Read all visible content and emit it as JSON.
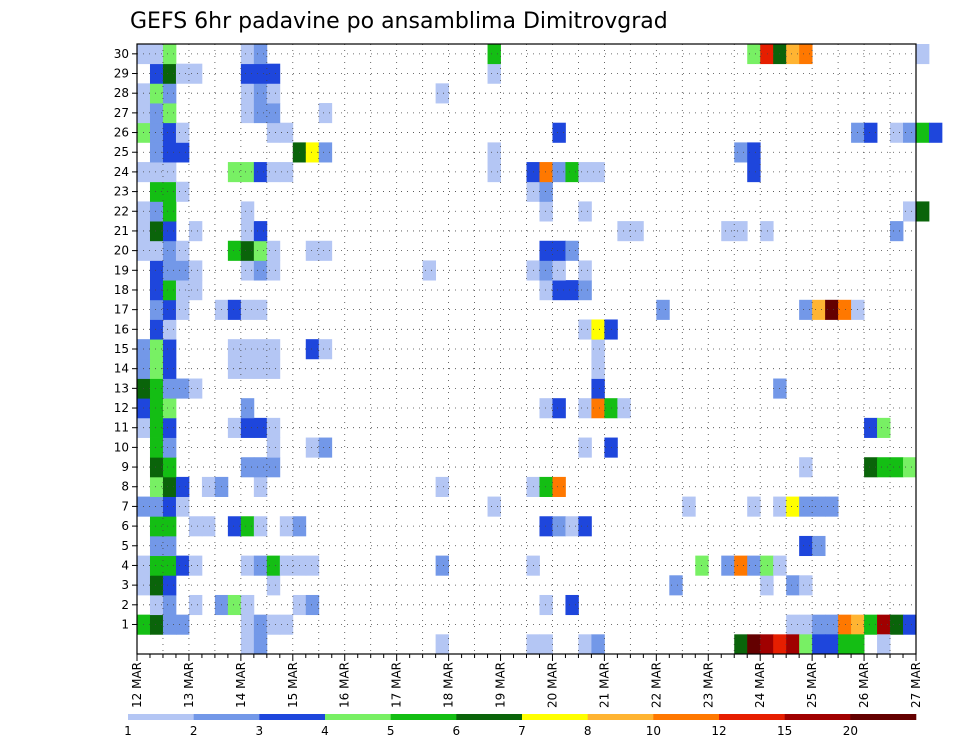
{
  "chart_data": {
    "type": "heatmap",
    "title": "GEFS 6hr padavine po ansamblima Dimitrovgrad",
    "y_members": [
      1,
      2,
      3,
      4,
      5,
      6,
      7,
      8,
      9,
      10,
      11,
      12,
      13,
      14,
      15,
      16,
      17,
      18,
      19,
      20,
      21,
      22,
      23,
      24,
      25,
      26,
      27,
      28,
      29,
      30
    ],
    "x_tick_labels": [
      "12 MAR",
      "13 MAR",
      "14 MAR",
      "15 MAR",
      "16 MAR",
      "17 MAR",
      "18 MAR",
      "19 MAR",
      "20 MAR",
      "21 MAR",
      "22 MAR",
      "23 MAR",
      "24 MAR",
      "25 MAR",
      "26 MAR",
      "27 MAR"
    ],
    "x_start_day": 12,
    "step_hours": 6,
    "grid": true,
    "colorbar": {
      "levels": [
        1,
        2,
        3,
        4,
        5,
        6,
        7,
        8,
        10,
        12,
        15,
        20
      ],
      "colors": [
        "#b4c6f4",
        "#7398e8",
        "#1e46dc",
        "#78f064",
        "#14be14",
        "#0a640a",
        "#ffff00",
        "#ffb432",
        "#ff7800",
        "#e61e00",
        "#a00000",
        "#640000"
      ]
    },
    "cells": [
      [
        1,
        0.0,
        5
      ],
      [
        1,
        0.25,
        6
      ],
      [
        1,
        0.5,
        2
      ],
      [
        1,
        0.75,
        2
      ],
      [
        1,
        2.0,
        1
      ],
      [
        1,
        2.25,
        2
      ],
      [
        1,
        2.5,
        1
      ],
      [
        1,
        2.75,
        1
      ],
      [
        1,
        12.5,
        1
      ],
      [
        1,
        12.75,
        1
      ],
      [
        1,
        13.0,
        2
      ],
      [
        1,
        13.25,
        2
      ],
      [
        1,
        13.5,
        9
      ],
      [
        1,
        13.75,
        8
      ],
      [
        1,
        14.0,
        5
      ],
      [
        1,
        14.25,
        11
      ],
      [
        1,
        14.5,
        6
      ],
      [
        1,
        14.75,
        3
      ],
      [
        2,
        0.25,
        1
      ],
      [
        2,
        0.5,
        2
      ],
      [
        2,
        1.0,
        1
      ],
      [
        2,
        1.5,
        2
      ],
      [
        2,
        1.75,
        4
      ],
      [
        2,
        2.0,
        1
      ],
      [
        2,
        3.0,
        1
      ],
      [
        2,
        3.25,
        2
      ],
      [
        2,
        7.75,
        1
      ],
      [
        2,
        8.25,
        3
      ],
      [
        3,
        0.0,
        1
      ],
      [
        3,
        0.25,
        6
      ],
      [
        3,
        0.5,
        3
      ],
      [
        3,
        2.5,
        1
      ],
      [
        3,
        10.25,
        2
      ],
      [
        3,
        12.0,
        1
      ],
      [
        3,
        12.5,
        2
      ],
      [
        3,
        12.75,
        1
      ],
      [
        4,
        0.0,
        1
      ],
      [
        4,
        0.25,
        5
      ],
      [
        4,
        0.5,
        5
      ],
      [
        4,
        0.75,
        3
      ],
      [
        4,
        1.0,
        1
      ],
      [
        4,
        2.0,
        1
      ],
      [
        4,
        2.25,
        2
      ],
      [
        4,
        2.5,
        5
      ],
      [
        4,
        2.75,
        1
      ],
      [
        4,
        3.0,
        1
      ],
      [
        4,
        3.25,
        1
      ],
      [
        4,
        5.75,
        2
      ],
      [
        4,
        7.5,
        1
      ],
      [
        4,
        10.75,
        4
      ],
      [
        4,
        11.25,
        2
      ],
      [
        4,
        11.5,
        9
      ],
      [
        4,
        11.75,
        2
      ],
      [
        4,
        12.0,
        4
      ],
      [
        4,
        12.25,
        1
      ],
      [
        5,
        0.25,
        2
      ],
      [
        5,
        0.5,
        2
      ],
      [
        5,
        12.75,
        3
      ],
      [
        5,
        13.0,
        2
      ],
      [
        6,
        0.25,
        5
      ],
      [
        6,
        0.5,
        5
      ],
      [
        6,
        1.0,
        1
      ],
      [
        6,
        1.25,
        1
      ],
      [
        6,
        1.75,
        3
      ],
      [
        6,
        2.0,
        5
      ],
      [
        6,
        2.25,
        1
      ],
      [
        6,
        2.75,
        1
      ],
      [
        6,
        3.0,
        2
      ],
      [
        6,
        7.75,
        3
      ],
      [
        6,
        8.0,
        2
      ],
      [
        6,
        8.25,
        1
      ],
      [
        6,
        8.5,
        3
      ],
      [
        7,
        0.0,
        2
      ],
      [
        7,
        0.25,
        2
      ],
      [
        7,
        0.5,
        3
      ],
      [
        7,
        0.75,
        1
      ],
      [
        7,
        6.75,
        1
      ],
      [
        7,
        10.5,
        1
      ],
      [
        7,
        11.75,
        1
      ],
      [
        7,
        12.25,
        1
      ],
      [
        7,
        12.5,
        7
      ],
      [
        7,
        12.75,
        2
      ],
      [
        7,
        13.0,
        2
      ],
      [
        7,
        13.25,
        2
      ],
      [
        8,
        0.25,
        4
      ],
      [
        8,
        0.5,
        6
      ],
      [
        8,
        0.75,
        3
      ],
      [
        8,
        1.25,
        1
      ],
      [
        8,
        1.5,
        2
      ],
      [
        8,
        2.25,
        1
      ],
      [
        8,
        5.75,
        1
      ],
      [
        8,
        7.5,
        1
      ],
      [
        8,
        7.75,
        5
      ],
      [
        8,
        8.0,
        9
      ],
      [
        9,
        0.25,
        6
      ],
      [
        9,
        0.5,
        5
      ],
      [
        9,
        2.0,
        2
      ],
      [
        9,
        2.25,
        2
      ],
      [
        9,
        2.5,
        2
      ],
      [
        9,
        12.75,
        1
      ],
      [
        9,
        14.0,
        6
      ],
      [
        9,
        14.25,
        5
      ],
      [
        9,
        14.5,
        5
      ],
      [
        9,
        14.75,
        4
      ],
      [
        10,
        0.25,
        5
      ],
      [
        10,
        0.5,
        2
      ],
      [
        10,
        2.5,
        1
      ],
      [
        10,
        3.25,
        1
      ],
      [
        10,
        3.5,
        2
      ],
      [
        10,
        8.5,
        1
      ],
      [
        10,
        9.0,
        3
      ],
      [
        11,
        0.0,
        1
      ],
      [
        11,
        0.25,
        5
      ],
      [
        11,
        0.5,
        3
      ],
      [
        11,
        1.75,
        1
      ],
      [
        11,
        2.0,
        3
      ],
      [
        11,
        2.25,
        3
      ],
      [
        11,
        2.5,
        1
      ],
      [
        11,
        14.0,
        3
      ],
      [
        11,
        14.25,
        4
      ],
      [
        12,
        0.0,
        3
      ],
      [
        12,
        0.25,
        5
      ],
      [
        12,
        0.5,
        4
      ],
      [
        12,
        2.0,
        2
      ],
      [
        12,
        7.75,
        1
      ],
      [
        12,
        8.0,
        3
      ],
      [
        12,
        8.5,
        1
      ],
      [
        12,
        8.75,
        9
      ],
      [
        12,
        9.0,
        5
      ],
      [
        12,
        9.25,
        1
      ],
      [
        13,
        0.0,
        6
      ],
      [
        13,
        0.25,
        5
      ],
      [
        13,
        0.5,
        2
      ],
      [
        13,
        0.75,
        2
      ],
      [
        13,
        1.0,
        1
      ],
      [
        13,
        8.75,
        3
      ],
      [
        13,
        12.25,
        2
      ],
      [
        14,
        0.0,
        2
      ],
      [
        14,
        0.25,
        4
      ],
      [
        14,
        0.5,
        3
      ],
      [
        14,
        1.75,
        1
      ],
      [
        14,
        2.0,
        1
      ],
      [
        14,
        2.25,
        1
      ],
      [
        14,
        2.5,
        1
      ],
      [
        14,
        8.75,
        1
      ],
      [
        15,
        0.0,
        2
      ],
      [
        15,
        0.25,
        4
      ],
      [
        15,
        0.5,
        3
      ],
      [
        15,
        1.75,
        1
      ],
      [
        15,
        2.0,
        1
      ],
      [
        15,
        2.25,
        1
      ],
      [
        15,
        2.5,
        1
      ],
      [
        15,
        3.25,
        3
      ],
      [
        15,
        3.5,
        1
      ],
      [
        15,
        8.75,
        1
      ],
      [
        16,
        0.25,
        3
      ],
      [
        16,
        0.5,
        1
      ],
      [
        16,
        8.5,
        1
      ],
      [
        16,
        8.75,
        7
      ],
      [
        16,
        9.0,
        3
      ],
      [
        17,
        0.25,
        2
      ],
      [
        17,
        0.5,
        3
      ],
      [
        17,
        0.75,
        1
      ],
      [
        17,
        1.5,
        1
      ],
      [
        17,
        1.75,
        3
      ],
      [
        17,
        2.0,
        1
      ],
      [
        17,
        2.25,
        1
      ],
      [
        17,
        10.0,
        2
      ],
      [
        17,
        12.75,
        2
      ],
      [
        17,
        13.0,
        8
      ],
      [
        17,
        13.25,
        12
      ],
      [
        17,
        13.5,
        9
      ],
      [
        17,
        13.75,
        1
      ],
      [
        18,
        0.25,
        3
      ],
      [
        18,
        0.5,
        5
      ],
      [
        18,
        0.75,
        1
      ],
      [
        18,
        1.0,
        1
      ],
      [
        18,
        7.75,
        1
      ],
      [
        18,
        8.0,
        3
      ],
      [
        18,
        8.25,
        3
      ],
      [
        18,
        8.5,
        2
      ],
      [
        19,
        0.25,
        3
      ],
      [
        19,
        0.5,
        2
      ],
      [
        19,
        0.75,
        2
      ],
      [
        19,
        1.0,
        1
      ],
      [
        19,
        2.0,
        1
      ],
      [
        19,
        2.25,
        2
      ],
      [
        19,
        2.5,
        1
      ],
      [
        19,
        5.5,
        1
      ],
      [
        19,
        7.5,
        1
      ],
      [
        19,
        7.75,
        2
      ],
      [
        19,
        8.0,
        1
      ],
      [
        19,
        8.5,
        1
      ],
      [
        20,
        0.0,
        1
      ],
      [
        20,
        0.25,
        1
      ],
      [
        20,
        0.5,
        2
      ],
      [
        20,
        0.75,
        1
      ],
      [
        20,
        1.75,
        5
      ],
      [
        20,
        2.0,
        6
      ],
      [
        20,
        2.25,
        4
      ],
      [
        20,
        2.5,
        1
      ],
      [
        20,
        3.25,
        1
      ],
      [
        20,
        3.5,
        1
      ],
      [
        20,
        7.75,
        3
      ],
      [
        20,
        8.0,
        3
      ],
      [
        20,
        8.25,
        2
      ],
      [
        21,
        0.0,
        1
      ],
      [
        21,
        0.25,
        6
      ],
      [
        21,
        0.5,
        3
      ],
      [
        21,
        1.0,
        1
      ],
      [
        21,
        2.0,
        1
      ],
      [
        21,
        2.25,
        3
      ],
      [
        21,
        9.25,
        1
      ],
      [
        21,
        9.5,
        1
      ],
      [
        21,
        11.25,
        1
      ],
      [
        21,
        11.5,
        1
      ],
      [
        21,
        12.0,
        1
      ],
      [
        21,
        14.5,
        2
      ],
      [
        22,
        0.0,
        1
      ],
      [
        22,
        0.25,
        2
      ],
      [
        22,
        0.5,
        5
      ],
      [
        22,
        2.0,
        1
      ],
      [
        22,
        7.75,
        1
      ],
      [
        22,
        8.5,
        1
      ],
      [
        22,
        14.75,
        1
      ],
      [
        22,
        15.0,
        6
      ],
      [
        23,
        0.25,
        5
      ],
      [
        23,
        0.5,
        5
      ],
      [
        23,
        0.75,
        1
      ],
      [
        23,
        7.5,
        1
      ],
      [
        23,
        7.75,
        2
      ],
      [
        24,
        0.0,
        1
      ],
      [
        24,
        0.25,
        1
      ],
      [
        24,
        0.5,
        1
      ],
      [
        24,
        1.75,
        4
      ],
      [
        24,
        2.0,
        4
      ],
      [
        24,
        2.25,
        3
      ],
      [
        24,
        2.5,
        1
      ],
      [
        24,
        2.75,
        1
      ],
      [
        24,
        6.75,
        1
      ],
      [
        24,
        7.5,
        3
      ],
      [
        24,
        7.75,
        9
      ],
      [
        24,
        8.0,
        2
      ],
      [
        24,
        8.25,
        5
      ],
      [
        24,
        8.5,
        1
      ],
      [
        24,
        8.75,
        1
      ],
      [
        24,
        11.75,
        3
      ],
      [
        25,
        0.25,
        2
      ],
      [
        25,
        0.5,
        3
      ],
      [
        25,
        0.75,
        3
      ],
      [
        25,
        3.0,
        6
      ],
      [
        25,
        3.25,
        7
      ],
      [
        25,
        3.5,
        2
      ],
      [
        25,
        6.75,
        1
      ],
      [
        25,
        11.5,
        2
      ],
      [
        25,
        11.75,
        3
      ],
      [
        26,
        0.0,
        4
      ],
      [
        26,
        0.25,
        2
      ],
      [
        26,
        0.5,
        3
      ],
      [
        26,
        0.75,
        1
      ],
      [
        26,
        2.5,
        1
      ],
      [
        26,
        2.75,
        1
      ],
      [
        26,
        8.0,
        3
      ],
      [
        26,
        13.75,
        2
      ],
      [
        26,
        14.0,
        3
      ],
      [
        26,
        14.5,
        1
      ],
      [
        26,
        14.75,
        2
      ],
      [
        26,
        15.0,
        5
      ],
      [
        26,
        15.25,
        3
      ],
      [
        27,
        0.0,
        1
      ],
      [
        27,
        0.25,
        2
      ],
      [
        27,
        0.5,
        4
      ],
      [
        27,
        2.0,
        1
      ],
      [
        27,
        2.25,
        2
      ],
      [
        27,
        2.5,
        2
      ],
      [
        27,
        3.5,
        1
      ],
      [
        28,
        0.0,
        1
      ],
      [
        28,
        0.25,
        4
      ],
      [
        28,
        0.5,
        2
      ],
      [
        28,
        2.0,
        1
      ],
      [
        28,
        2.25,
        2
      ],
      [
        28,
        2.5,
        1
      ],
      [
        28,
        5.75,
        1
      ],
      [
        29,
        0.25,
        3
      ],
      [
        29,
        0.5,
        6
      ],
      [
        29,
        0.75,
        1
      ],
      [
        29,
        1.0,
        1
      ],
      [
        29,
        2.0,
        3
      ],
      [
        29,
        2.25,
        3
      ],
      [
        29,
        2.5,
        3
      ],
      [
        29,
        6.75,
        1
      ],
      [
        30,
        0.0,
        1
      ],
      [
        30,
        0.25,
        1
      ],
      [
        30,
        0.5,
        4
      ],
      [
        30,
        2.0,
        1
      ],
      [
        30,
        2.25,
        2
      ],
      [
        30,
        6.75,
        5
      ],
      [
        30,
        11.75,
        4
      ],
      [
        30,
        12.0,
        10
      ],
      [
        30,
        12.25,
        6
      ],
      [
        30,
        12.5,
        8
      ],
      [
        30,
        12.75,
        9
      ],
      [
        30,
        15.0,
        1
      ],
      [
        0,
        2.0,
        1
      ],
      [
        0,
        2.25,
        2
      ],
      [
        0,
        5.75,
        1
      ],
      [
        0,
        7.5,
        1
      ],
      [
        0,
        7.75,
        1
      ],
      [
        0,
        8.5,
        1
      ],
      [
        0,
        8.75,
        2
      ],
      [
        0,
        11.5,
        6
      ],
      [
        0,
        11.75,
        12
      ],
      [
        0,
        12.0,
        11
      ],
      [
        0,
        12.25,
        10
      ],
      [
        0,
        12.5,
        11
      ],
      [
        0,
        12.75,
        4
      ],
      [
        0,
        13.0,
        3
      ],
      [
        0,
        13.25,
        3
      ],
      [
        0,
        13.5,
        5
      ],
      [
        0,
        13.75,
        5
      ],
      [
        0,
        14.25,
        1
      ]
    ]
  }
}
